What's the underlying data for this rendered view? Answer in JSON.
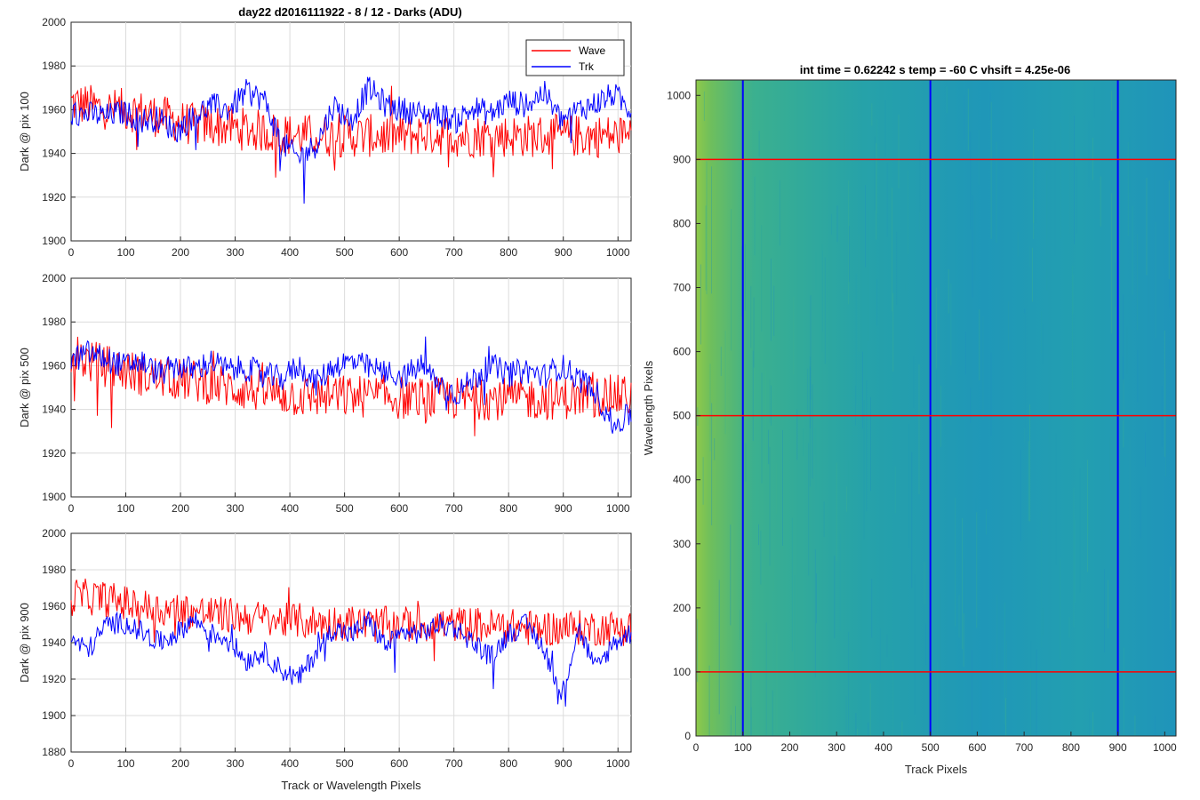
{
  "figure": {
    "title": "day22 d2016111922 - 8 / 12 - Darks (ADU)",
    "shared_xlabel": "Track or Wavelength Pixels"
  },
  "legend": {
    "entries": [
      {
        "label": "Wave",
        "color": "#ff0000"
      },
      {
        "label": "Trk",
        "color": "#0000ff"
      }
    ],
    "placement": "top-right"
  },
  "chart_data": [
    {
      "type": "line",
      "ylabel": "Dark @ pix 100",
      "xlim": [
        0,
        1024
      ],
      "ylim": [
        1900,
        2000
      ],
      "xticks": [
        0,
        100,
        200,
        300,
        400,
        500,
        600,
        700,
        800,
        900,
        1000
      ],
      "yticks": [
        1900,
        1920,
        1940,
        1960,
        1980,
        2000
      ],
      "grid": true,
      "series": [
        {
          "name": "Wave",
          "color": "#ff0000",
          "x": [
            0,
            32,
            64,
            96,
            128,
            160,
            192,
            224,
            256,
            288,
            320,
            352,
            384,
            416,
            448,
            480,
            512,
            544,
            576,
            608,
            640,
            672,
            704,
            736,
            768,
            800,
            832,
            864,
            896,
            928,
            960,
            992,
            1023
          ],
          "values": [
            1963,
            1962,
            1960,
            1960,
            1959,
            1957,
            1955,
            1953,
            1953,
            1952,
            1951,
            1950,
            1949,
            1948,
            1948,
            1948,
            1948,
            1948,
            1948,
            1948,
            1949,
            1949,
            1948,
            1948,
            1948,
            1948,
            1948,
            1948,
            1948,
            1948,
            1948,
            1948,
            1948
          ]
        },
        {
          "name": "Trk",
          "color": "#0000ff",
          "x": [
            0,
            32,
            64,
            96,
            128,
            160,
            192,
            224,
            256,
            288,
            320,
            352,
            384,
            416,
            448,
            480,
            512,
            544,
            576,
            608,
            640,
            672,
            704,
            736,
            768,
            800,
            832,
            864,
            896,
            928,
            960,
            992,
            1023
          ],
          "values": [
            1958,
            1958,
            1957,
            1959,
            1955,
            1956,
            1950,
            1957,
            1962,
            1960,
            1968,
            1965,
            1945,
            1938,
            1944,
            1962,
            1955,
            1970,
            1962,
            1960,
            1958,
            1958,
            1955,
            1961,
            1958,
            1964,
            1962,
            1968,
            1955,
            1960,
            1963,
            1967,
            1960
          ]
        }
      ]
    },
    {
      "type": "line",
      "ylabel": "Dark @ pix 500",
      "xlim": [
        0,
        1024
      ],
      "ylim": [
        1900,
        2000
      ],
      "xticks": [
        0,
        100,
        200,
        300,
        400,
        500,
        600,
        700,
        800,
        900,
        1000
      ],
      "yticks": [
        1900,
        1920,
        1940,
        1960,
        1980,
        2000
      ],
      "grid": true,
      "series": [
        {
          "name": "Wave",
          "color": "#ff0000",
          "x": [
            0,
            32,
            64,
            96,
            128,
            160,
            192,
            224,
            256,
            288,
            320,
            352,
            384,
            416,
            448,
            480,
            512,
            544,
            576,
            608,
            640,
            672,
            704,
            736,
            768,
            800,
            832,
            864,
            896,
            928,
            960,
            992,
            1023
          ],
          "values": [
            1966,
            1962,
            1960,
            1958,
            1956,
            1955,
            1954,
            1953,
            1952,
            1950,
            1949,
            1948,
            1947,
            1946,
            1946,
            1946,
            1946,
            1946,
            1946,
            1945,
            1945,
            1945,
            1945,
            1945,
            1945,
            1945,
            1945,
            1945,
            1945,
            1946,
            1946,
            1946,
            1946
          ]
        },
        {
          "name": "Trk",
          "color": "#0000ff",
          "x": [
            0,
            32,
            64,
            96,
            128,
            160,
            192,
            224,
            256,
            288,
            320,
            352,
            384,
            416,
            448,
            480,
            512,
            544,
            576,
            608,
            640,
            672,
            704,
            736,
            768,
            800,
            832,
            864,
            896,
            928,
            960,
            992,
            1023
          ],
          "values": [
            1962,
            1966,
            1963,
            1960,
            1962,
            1956,
            1960,
            1958,
            1962,
            1958,
            1959,
            1956,
            1954,
            1960,
            1952,
            1960,
            1962,
            1959,
            1957,
            1955,
            1960,
            1952,
            1947,
            1954,
            1960,
            1956,
            1958,
            1955,
            1960,
            1954,
            1948,
            1932,
            1938
          ]
        }
      ]
    },
    {
      "type": "line",
      "ylabel": "Dark @ pix 900",
      "xlim": [
        0,
        1024
      ],
      "ylim": [
        1880,
        2000
      ],
      "xticks": [
        0,
        100,
        200,
        300,
        400,
        500,
        600,
        700,
        800,
        900,
        1000
      ],
      "yticks": [
        1880,
        1900,
        1920,
        1940,
        1960,
        1980,
        2000
      ],
      "grid": true,
      "series": [
        {
          "name": "Wave",
          "color": "#ff0000",
          "x": [
            0,
            32,
            64,
            96,
            128,
            160,
            192,
            224,
            256,
            288,
            320,
            352,
            384,
            416,
            448,
            480,
            512,
            544,
            576,
            608,
            640,
            672,
            704,
            736,
            768,
            800,
            832,
            864,
            896,
            928,
            960,
            992,
            1023
          ],
          "values": [
            1966,
            1965,
            1964,
            1962,
            1960,
            1958,
            1958,
            1957,
            1956,
            1955,
            1954,
            1953,
            1952,
            1952,
            1951,
            1951,
            1951,
            1950,
            1950,
            1950,
            1950,
            1950,
            1950,
            1950,
            1949,
            1949,
            1948,
            1948,
            1948,
            1948,
            1948,
            1948,
            1948
          ]
        },
        {
          "name": "Trk",
          "color": "#0000ff",
          "x": [
            0,
            32,
            64,
            96,
            128,
            160,
            192,
            224,
            256,
            288,
            320,
            352,
            384,
            416,
            448,
            480,
            512,
            544,
            576,
            608,
            640,
            672,
            704,
            736,
            768,
            800,
            832,
            864,
            896,
            928,
            960,
            992,
            1023
          ],
          "values": [
            1942,
            1936,
            1950,
            1951,
            1946,
            1940,
            1945,
            1953,
            1945,
            1942,
            1930,
            1935,
            1925,
            1920,
            1935,
            1948,
            1944,
            1952,
            1938,
            1946,
            1945,
            1950,
            1948,
            1940,
            1932,
            1945,
            1950,
            1938,
            1910,
            1948,
            1925,
            1940,
            1945
          ]
        }
      ]
    },
    {
      "type": "heatmap",
      "title": "int time = 0.62242 s    temp = -60 C    vhsift = 4.25e-06",
      "xlabel": "Track Pixels",
      "ylabel": "Wavelength Pixels",
      "xlim": [
        0,
        1024
      ],
      "ylim": [
        0,
        1024
      ],
      "xticks": [
        0,
        100,
        200,
        300,
        400,
        500,
        600,
        700,
        800,
        900,
        1000
      ],
      "yticks": [
        0,
        100,
        200,
        300,
        400,
        500,
        600,
        700,
        800,
        900,
        1000
      ],
      "colors": {
        "low": "#1f8fbe",
        "mid": "#23a8a4",
        "high": "#8fc94a"
      },
      "vertical_lines": {
        "color": "#0000ff",
        "x": [
          100,
          500,
          900
        ]
      },
      "horizontal_lines": {
        "color": "#ff0000",
        "y": [
          100,
          500,
          900
        ]
      }
    }
  ]
}
